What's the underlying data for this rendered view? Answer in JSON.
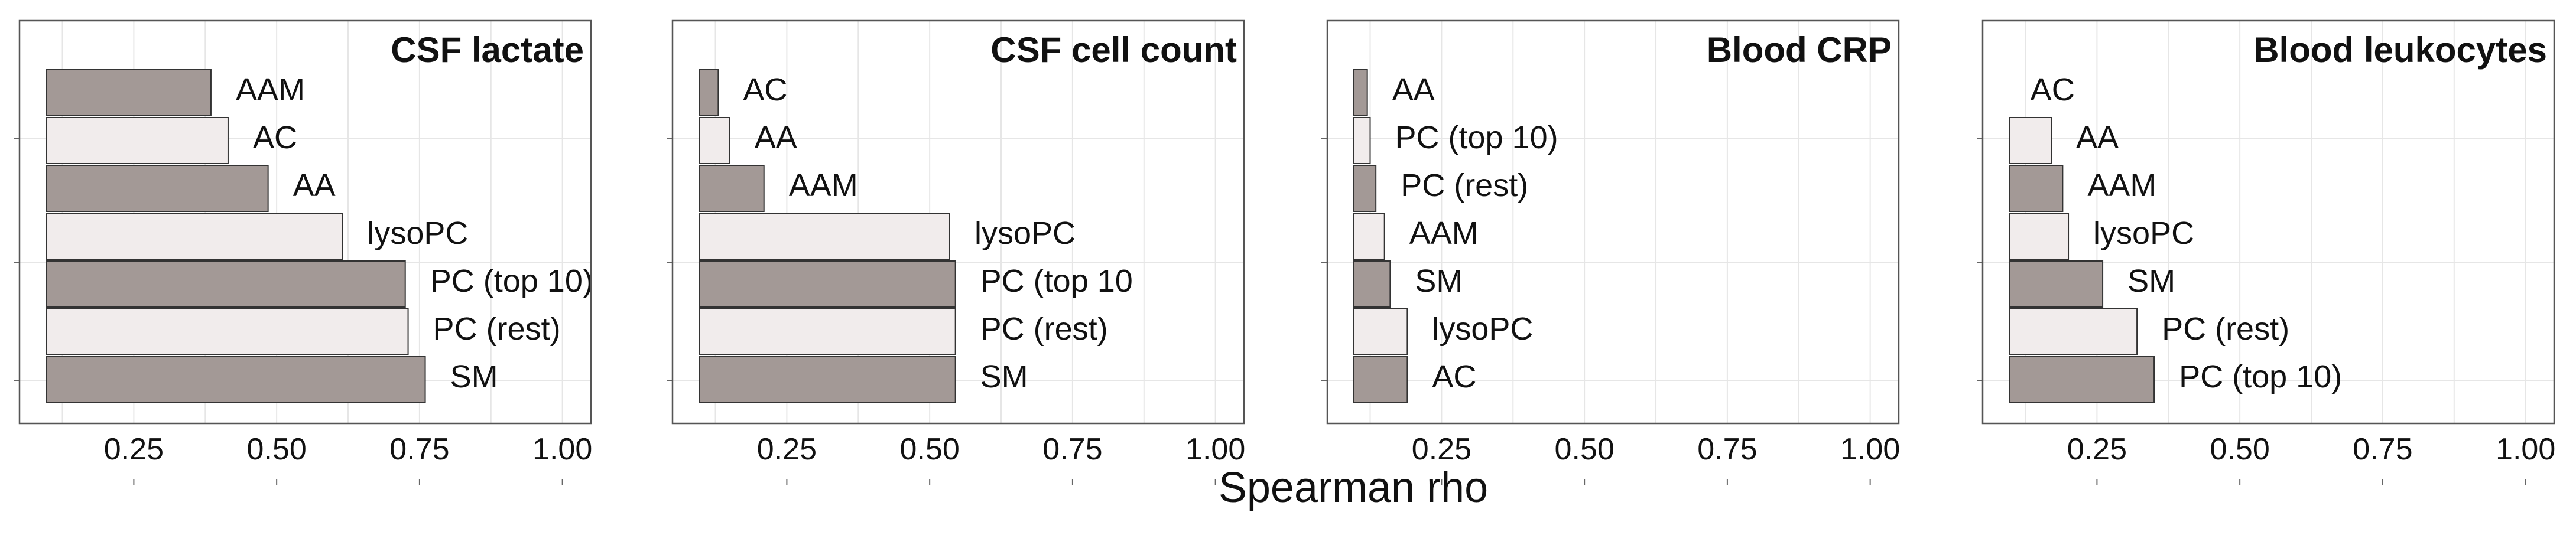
{
  "figure": {
    "shared_xlabel": "Spearman rho",
    "bar_colors": {
      "dark": "#a39996",
      "light": "#f1ecec"
    },
    "frame_color": "#555555",
    "grid_color": "#e6e6e6",
    "text_color": "#111111"
  },
  "chart_data": [
    {
      "type": "bar",
      "orientation": "horizontal",
      "title": "CSF lactate",
      "xlabel": "Spearman rho",
      "xlim": [
        0.05,
        1.05
      ],
      "ticks": [
        "0.25",
        "0.50",
        "0.75",
        "1.00"
      ],
      "tick_values": [
        0.25,
        0.5,
        0.75,
        1.0
      ],
      "grid": true,
      "categories": [
        "AAM",
        "AC",
        "AA",
        "lysoPC",
        "PC (top 10)",
        "PC (rest)",
        "SM"
      ],
      "values": [
        0.385,
        0.415,
        0.485,
        0.615,
        0.725,
        0.73,
        0.76
      ],
      "shades": [
        "dark",
        "light",
        "dark",
        "light",
        "dark",
        "light",
        "dark"
      ]
    },
    {
      "type": "bar",
      "orientation": "horizontal",
      "title": "CSF cell count",
      "xlabel": "Spearman rho",
      "xlim": [
        0.05,
        1.05
      ],
      "ticks": [
        "0.25",
        "0.50",
        "0.75",
        "1.00"
      ],
      "tick_values": [
        0.25,
        0.5,
        0.75,
        1.0
      ],
      "grid": true,
      "categories": [
        "AC",
        "AA",
        "AAM",
        "lysoPC",
        "PC (top 10",
        "PC (rest)",
        "SM"
      ],
      "values": [
        0.13,
        0.15,
        0.21,
        0.535,
        0.545,
        0.545,
        0.545
      ],
      "shades": [
        "dark",
        "light",
        "dark",
        "light",
        "dark",
        "light",
        "dark"
      ]
    },
    {
      "type": "bar",
      "orientation": "horizontal",
      "title": "Blood CRP",
      "xlabel": "Spearman rho",
      "xlim": [
        0.05,
        1.05
      ],
      "ticks": [
        "0.25",
        "0.50",
        "0.75",
        "1.00"
      ],
      "tick_values": [
        0.25,
        0.5,
        0.75,
        1.0
      ],
      "grid": true,
      "categories": [
        "AA",
        "PC (top 10)",
        "PC (rest)",
        "AAM",
        "SM",
        "lysoPC",
        "AC"
      ],
      "values": [
        0.12,
        0.125,
        0.135,
        0.15,
        0.16,
        0.19,
        0.19
      ],
      "shades": [
        "dark",
        "light",
        "dark",
        "light",
        "dark",
        "light",
        "dark"
      ]
    },
    {
      "type": "bar",
      "orientation": "horizontal",
      "title": "Blood leukocytes",
      "xlabel": "Spearman rho",
      "xlim": [
        0.05,
        1.05
      ],
      "ticks": [
        "0.25",
        "0.50",
        "0.75",
        "1.00"
      ],
      "tick_values": [
        0.25,
        0.5,
        0.75,
        1.0
      ],
      "grid": true,
      "categories": [
        "AC",
        "AA",
        "AAM",
        "lysoPC",
        "SM",
        "PC (rest)",
        "PC (top 10)"
      ],
      "values": [
        0.09,
        0.17,
        0.19,
        0.2,
        0.26,
        0.32,
        0.35
      ],
      "shades": [
        "dark",
        "light",
        "dark",
        "light",
        "dark",
        "light",
        "dark"
      ]
    }
  ]
}
